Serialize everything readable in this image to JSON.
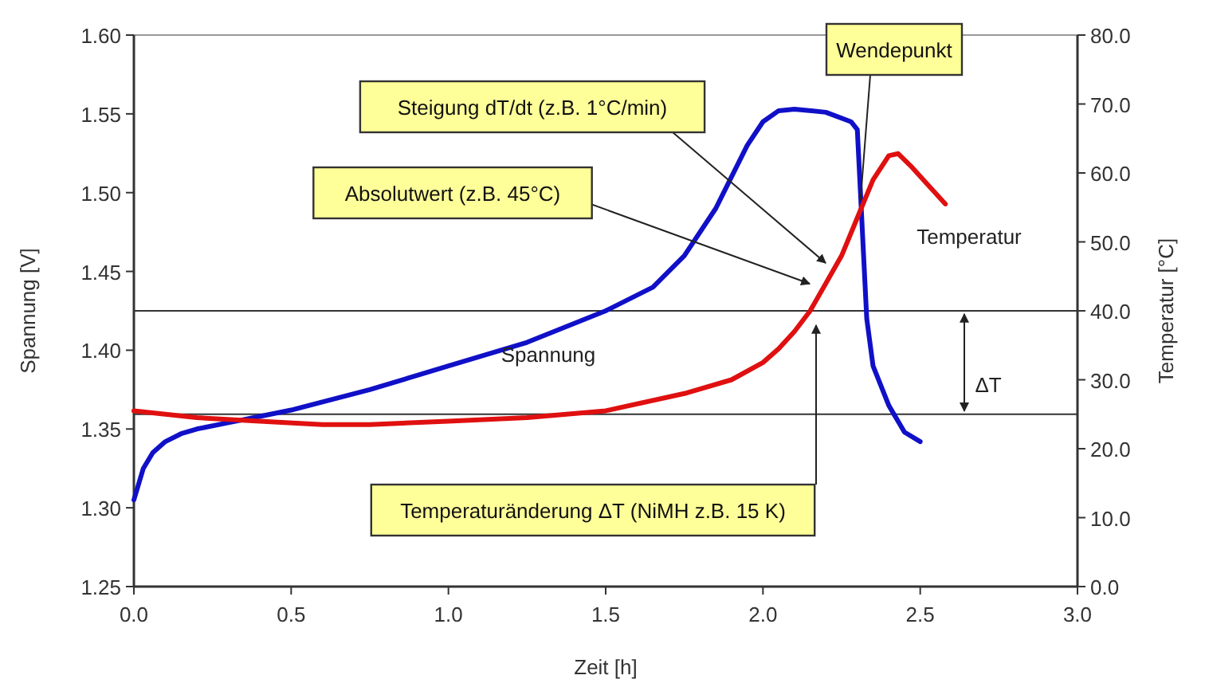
{
  "chart_data": {
    "type": "line",
    "xlabel": "Zeit [h]",
    "ylabel": "Spannung [V]",
    "y2label": "Temperatur [°C]",
    "xlim": [
      0,
      3
    ],
    "xticks": [
      {
        "value": 0,
        "label": "0.0"
      },
      {
        "value": 0.5,
        "label": "0.5"
      },
      {
        "value": 1,
        "label": "1.0"
      },
      {
        "value": 1.5,
        "label": "1.5"
      },
      {
        "value": 2,
        "label": "2.0"
      },
      {
        "value": 2.5,
        "label": "2.5"
      },
      {
        "value": 3,
        "label": "3.0"
      }
    ],
    "ylim": [
      1.25,
      1.6
    ],
    "yticks": [
      {
        "value": 1.25,
        "label": "1.25"
      },
      {
        "value": 1.3,
        "label": "1.30"
      },
      {
        "value": 1.35,
        "label": "1.35"
      },
      {
        "value": 1.4,
        "label": "1.40"
      },
      {
        "value": 1.45,
        "label": "1.45"
      },
      {
        "value": 1.5,
        "label": "1.50"
      },
      {
        "value": 1.55,
        "label": "1.55"
      },
      {
        "value": 1.6,
        "label": "1.60"
      }
    ],
    "y2lim": [
      0,
      80
    ],
    "y2ticks": [
      {
        "value": 0,
        "label": "0.0"
      },
      {
        "value": 10,
        "label": "10.0"
      },
      {
        "value": 20,
        "label": "20.0"
      },
      {
        "value": 30,
        "label": "30.0"
      },
      {
        "value": 40,
        "label": "40.0"
      },
      {
        "value": 50,
        "label": "50.0"
      },
      {
        "value": 60,
        "label": "60.0"
      },
      {
        "value": 70,
        "label": "70.0"
      },
      {
        "value": 80,
        "label": "80.0"
      }
    ],
    "grid": false,
    "marker": "none",
    "line_style": "solid",
    "series": [
      {
        "name": "Spannung",
        "color": "#1010c8",
        "x": [
          0,
          0.03,
          0.06,
          0.1,
          0.15,
          0.2,
          0.3,
          0.4,
          0.5,
          0.75,
          1.0,
          1.25,
          1.5,
          1.65,
          1.75,
          1.85,
          1.95,
          2.0,
          2.05,
          2.1,
          2.2,
          2.28,
          2.3,
          2.31,
          2.32,
          2.33,
          2.35,
          2.4,
          2.45,
          2.5
        ],
        "values": [
          1.305,
          1.325,
          1.335,
          1.342,
          1.347,
          1.35,
          1.354,
          1.358,
          1.362,
          1.375,
          1.39,
          1.405,
          1.425,
          1.44,
          1.46,
          1.49,
          1.53,
          1.545,
          1.552,
          1.553,
          1.551,
          1.545,
          1.54,
          1.5,
          1.46,
          1.42,
          1.39,
          1.365,
          1.348,
          1.342
        ]
      },
      {
        "name": "Temperatur",
        "color": "#e01010",
        "axis": "y2",
        "x": [
          0,
          0.1,
          0.2,
          0.4,
          0.6,
          0.75,
          1.0,
          1.25,
          1.5,
          1.75,
          1.9,
          2.0,
          2.05,
          2.1,
          2.15,
          2.2,
          2.25,
          2.3,
          2.35,
          2.4,
          2.43,
          2.47,
          2.52,
          2.58
        ],
        "values": [
          25.5,
          25,
          24.5,
          24,
          23.5,
          23.5,
          24,
          24.5,
          25.5,
          28,
          30,
          32.5,
          34.5,
          37,
          40,
          44,
          48,
          53.5,
          59,
          62.5,
          62.8,
          61,
          58.5,
          55.5
        ]
      }
    ],
    "ref_lines": [
      {
        "axis": "y2",
        "value": 25,
        "color": "#333333"
      },
      {
        "axis": "y2",
        "value": 40,
        "color": "#333333"
      }
    ],
    "annotations": [
      "Steigung dT/dt (z.B. 1°C/min)",
      "Absolutwert (z.B. 45°C)",
      {
        "text": "Wendepunkt",
        "x": 2.31,
        "y": 1.495
      },
      "Temperaturänderung ΔT (NiMH z.B. 15 K)",
      "ΔT"
    ]
  }
}
